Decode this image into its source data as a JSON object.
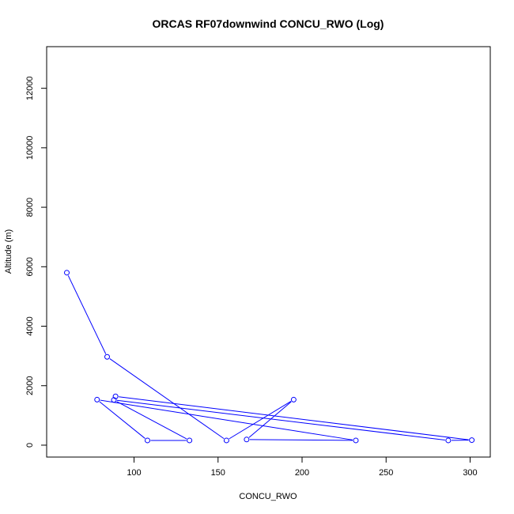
{
  "chart_data": {
    "type": "line",
    "title": "ORCAS RF07downwind CONCU_RWO (Log)",
    "xlabel": "CONCU_RWO",
    "ylabel": "Altitude (m)",
    "xlim": [
      48,
      312
    ],
    "ylim": [
      -400,
      13400
    ],
    "xticks": [
      100,
      150,
      200,
      250,
      300
    ],
    "yticks": [
      0,
      2000,
      4000,
      6000,
      8000,
      10000,
      12000
    ],
    "grid": false,
    "legend": "none",
    "markers": "open-circle",
    "line_color": "#0000ff",
    "series": [
      {
        "x": [
          60,
          84,
          155,
          195,
          167,
          232,
          78,
          108,
          133,
          88,
          287,
          301,
          89
        ],
        "y": [
          5800,
          2970,
          160,
          1530,
          190,
          160,
          1530,
          160,
          160,
          1520,
          160,
          170,
          1640
        ]
      }
    ]
  }
}
